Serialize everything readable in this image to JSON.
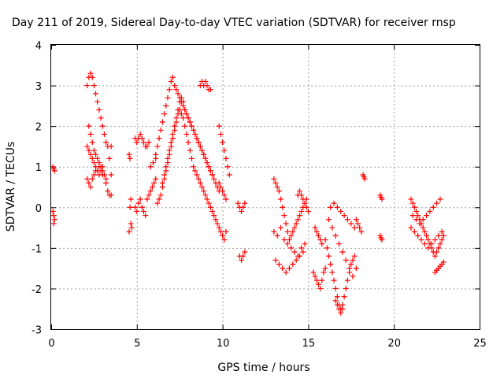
{
  "chart_data": {
    "type": "scatter",
    "title": "Day 211 of 2019, Sidereal Day-to-day VTEC variation (SDTVAR) for receiver rnsp",
    "xlabel": "GPS time / hours",
    "ylabel": "SDTVAR / TECUs",
    "xlim": [
      0,
      25
    ],
    "ylim": [
      -3,
      4
    ],
    "xticks": [
      "0",
      "5",
      "10",
      "15",
      "20",
      "25"
    ],
    "yticks": [
      "4",
      "3",
      "2",
      "1",
      "0",
      "-1",
      "-2",
      "-3"
    ],
    "grid": true,
    "marker": "+",
    "color": "#ff0000",
    "series": [
      {
        "name": "SDTVAR",
        "x": [
          0.1,
          0.15,
          0.2,
          0.1,
          0.15,
          0.2,
          0.15,
          2.1,
          2.2,
          2.3,
          2.4,
          2.5,
          2.6,
          2.7,
          2.8,
          2.9,
          3.0,
          3.1,
          3.2,
          3.3,
          2.2,
          2.3,
          2.4,
          2.5,
          2.6,
          2.7,
          2.8,
          2.9,
          3.0,
          3.1,
          3.2,
          2.1,
          2.2,
          2.3,
          2.4,
          2.5,
          2.6,
          2.7,
          2.8,
          2.9,
          3.0,
          2.1,
          2.2,
          2.3,
          2.4,
          2.5,
          2.6,
          2.8,
          3.0,
          3.2,
          3.3,
          3.4,
          3.5,
          3.5,
          3.4,
          3.5,
          4.55,
          4.6,
          4.65,
          4.7,
          4.55,
          4.6,
          4.65,
          4.9,
          5.0,
          5.1,
          5.2,
          5.3,
          5.4,
          5.5,
          5.6,
          5.7,
          4.9,
          5.0,
          5.1,
          5.2,
          5.3,
          5.4,
          5.5,
          5.6,
          5.7,
          5.8,
          5.9,
          6.0,
          6.1,
          5.8,
          5.95,
          6.1,
          6.1,
          6.2,
          6.3,
          6.4,
          6.5,
          6.6,
          6.7,
          6.8,
          6.9,
          7.0,
          7.1,
          7.2,
          7.3,
          7.4,
          7.5,
          7.6,
          7.7,
          7.8,
          7.9,
          8.0,
          8.1,
          8.2,
          8.3,
          8.4,
          8.5,
          8.6,
          8.7,
          8.8,
          8.9,
          9.0,
          9.1,
          9.2,
          9.3,
          9.4,
          6.5,
          6.6,
          6.7,
          6.8,
          6.9,
          7.0,
          7.1,
          7.2,
          7.3,
          7.4,
          7.5,
          7.6,
          7.7,
          7.8,
          7.9,
          8.0,
          8.1,
          8.2,
          8.3,
          8.4,
          8.5,
          8.6,
          8.7,
          8.8,
          8.9,
          9.0,
          9.1,
          9.2,
          9.3,
          9.4,
          9.5,
          9.6,
          9.7,
          9.8,
          6.2,
          6.3,
          6.4,
          6.5,
          6.6,
          6.7,
          6.8,
          6.9,
          7.0,
          7.1,
          7.2,
          7.3,
          7.4,
          7.5,
          7.6,
          7.7,
          7.8,
          7.9,
          8.0,
          8.1,
          8.2,
          8.3,
          8.4,
          8.5,
          8.6,
          8.7,
          8.8,
          8.9,
          9.0,
          9.1,
          9.2,
          9.3,
          9.4,
          9.5,
          9.6,
          9.7,
          9.8,
          9.9,
          10.0,
          10.1,
          10.2,
          8.7,
          8.8,
          8.9,
          9.0,
          9.1,
          9.2,
          9.3,
          9.8,
          9.9,
          10.0,
          10.1,
          10.2,
          10.3,
          10.4,
          9.8,
          9.9,
          10.0,
          10.1,
          10.2,
          10.9,
          11.0,
          11.1,
          11.2,
          11.3,
          11.0,
          11.1,
          11.2,
          11.3,
          13.0,
          13.1,
          13.2,
          13.3,
          13.4,
          13.5,
          13.6,
          13.7,
          13.8,
          13.9,
          14.0,
          14.1,
          14.2,
          14.3,
          14.4,
          14.5,
          14.6,
          14.7,
          14.8,
          14.9,
          13.0,
          13.2,
          13.4,
          13.6,
          13.8,
          14.0,
          14.2,
          14.4,
          14.6,
          14.8,
          13.1,
          13.3,
          13.5,
          13.7,
          13.9,
          14.1,
          14.3,
          14.5,
          14.7,
          14.4,
          14.5,
          14.6,
          14.7,
          14.8,
          14.9,
          15.0,
          15.3,
          15.4,
          15.5,
          15.6,
          15.7,
          15.8,
          15.9,
          16.0,
          15.4,
          15.5,
          15.6,
          15.7,
          15.8,
          16.0,
          16.1,
          16.2,
          16.3,
          16.4,
          16.5,
          16.6,
          16.7,
          16.8,
          16.9,
          17.0,
          17.1,
          17.2,
          17.3,
          17.4,
          17.5,
          17.6,
          17.7,
          17.8,
          16.2,
          16.4,
          16.6,
          16.8,
          17.0,
          17.2,
          17.4,
          17.6,
          16.3,
          16.5,
          16.7,
          16.9,
          17.1,
          17.3,
          17.5,
          17.7,
          16.6,
          16.7,
          16.8,
          16.9,
          17.0,
          18.2,
          18.25,
          18.3,
          17.8,
          17.9,
          18.0,
          18.1,
          19.2,
          19.25,
          19.3,
          19.2,
          19.25,
          19.3,
          21.0,
          21.1,
          21.2,
          21.3,
          21.4,
          21.5,
          21.6,
          21.7,
          21.8,
          21.9,
          22.0,
          22.1,
          22.2,
          22.3,
          22.4,
          22.5,
          22.6,
          22.7,
          22.8,
          22.9,
          21.0,
          21.2,
          21.4,
          21.6,
          21.8,
          22.0,
          22.2,
          22.4,
          22.6,
          22.8,
          21.1,
          21.3,
          21.5,
          21.7,
          21.9,
          22.1,
          22.3,
          22.5,
          22.7,
          22.4,
          22.5,
          22.6,
          22.7,
          22.8,
          22.9
        ],
        "y": [
          1.0,
          0.95,
          0.9,
          -0.1,
          -0.2,
          -0.3,
          -0.4,
          3.0,
          3.2,
          3.3,
          3.2,
          3.0,
          2.8,
          2.6,
          2.4,
          2.2,
          2.0,
          1.8,
          1.6,
          1.5,
          2.0,
          1.8,
          1.6,
          1.4,
          1.3,
          1.2,
          1.1,
          1.0,
          0.9,
          0.8,
          0.7,
          1.5,
          1.4,
          1.3,
          1.2,
          1.1,
          1.0,
          0.9,
          0.8,
          0.9,
          1.0,
          0.7,
          0.6,
          0.5,
          0.7,
          0.8,
          0.9,
          1.0,
          0.8,
          0.6,
          0.4,
          0.3,
          0.3,
          0.8,
          1.2,
          1.5,
          1.3,
          1.2,
          -0.4,
          -0.5,
          -0.6,
          0.0,
          0.2,
          1.7,
          1.6,
          1.7,
          1.8,
          1.7,
          1.6,
          1.5,
          1.5,
          1.6,
          0.0,
          -0.1,
          0.1,
          0.2,
          0.0,
          -0.1,
          -0.2,
          0.2,
          0.3,
          0.4,
          0.5,
          0.6,
          0.7,
          1.0,
          1.1,
          1.2,
          1.3,
          1.5,
          1.7,
          1.9,
          2.1,
          2.3,
          2.5,
          2.7,
          2.9,
          3.1,
          3.2,
          3.0,
          2.9,
          2.8,
          2.7,
          2.6,
          2.5,
          2.4,
          2.3,
          2.2,
          2.1,
          2.0,
          1.9,
          1.8,
          1.7,
          1.6,
          1.5,
          1.4,
          1.3,
          1.2,
          1.1,
          1.0,
          0.9,
          0.8,
          0.6,
          0.8,
          1.0,
          1.2,
          1.4,
          1.6,
          1.8,
          2.0,
          2.2,
          2.4,
          2.6,
          2.7,
          2.6,
          2.4,
          2.3,
          2.2,
          2.1,
          2.0,
          1.9,
          1.8,
          1.7,
          1.6,
          1.5,
          1.4,
          1.3,
          1.2,
          1.1,
          1.0,
          0.9,
          0.8,
          0.7,
          0.6,
          0.5,
          0.4,
          0.1,
          0.2,
          0.3,
          0.5,
          0.7,
          0.9,
          1.1,
          1.3,
          1.5,
          1.7,
          1.9,
          2.1,
          2.3,
          2.4,
          2.3,
          2.2,
          2.0,
          1.8,
          1.6,
          1.4,
          1.2,
          1.0,
          0.9,
          0.8,
          0.7,
          0.6,
          0.5,
          0.4,
          0.3,
          0.2,
          0.1,
          0.0,
          -0.1,
          -0.2,
          -0.3,
          -0.4,
          -0.5,
          -0.6,
          -0.7,
          -0.8,
          -0.6,
          3.0,
          3.1,
          3.0,
          3.1,
          3.0,
          2.9,
          2.9,
          2.0,
          1.8,
          1.6,
          1.4,
          1.2,
          1.0,
          0.8,
          0.6,
          0.5,
          0.4,
          0.3,
          0.2,
          0.1,
          0.0,
          -0.1,
          0.0,
          0.1,
          -1.2,
          -1.3,
          -1.2,
          -1.1,
          0.7,
          0.6,
          0.5,
          0.4,
          0.2,
          0.0,
          -0.2,
          -0.4,
          -0.6,
          -0.8,
          -0.7,
          -0.6,
          -0.5,
          -0.4,
          -0.3,
          -0.2,
          -0.1,
          0.0,
          0.1,
          0.2,
          -0.6,
          -0.7,
          -0.5,
          -0.8,
          -0.9,
          -1.0,
          -1.1,
          -1.2,
          -1.0,
          -0.9,
          -1.3,
          -1.4,
          -1.5,
          -1.6,
          -1.5,
          -1.4,
          -1.3,
          -1.2,
          -1.1,
          0.3,
          0.4,
          0.3,
          0.2,
          0.1,
          0.0,
          -0.1,
          -1.6,
          -1.7,
          -1.8,
          -1.9,
          -2.0,
          -1.8,
          -1.6,
          -1.5,
          -0.5,
          -0.6,
          -0.7,
          -0.8,
          -0.9,
          -0.8,
          -1.0,
          -1.2,
          -1.4,
          -1.6,
          -1.8,
          -2.0,
          -2.2,
          -2.4,
          -2.5,
          -2.4,
          -2.2,
          -2.0,
          -1.8,
          -1.6,
          -1.4,
          -1.3,
          -1.2,
          -1.5,
          -0.3,
          -0.5,
          -0.7,
          -0.9,
          -1.1,
          -1.3,
          -1.5,
          -1.7,
          0.0,
          0.1,
          0.0,
          -0.1,
          -0.2,
          -0.3,
          -0.4,
          -0.5,
          -2.3,
          -2.4,
          -2.5,
          -2.6,
          -2.5,
          0.8,
          0.75,
          0.7,
          -0.3,
          -0.4,
          -0.5,
          -0.6,
          0.3,
          0.25,
          0.2,
          -0.7,
          -0.75,
          -0.8,
          0.2,
          0.1,
          0.0,
          -0.1,
          -0.2,
          -0.3,
          -0.4,
          -0.5,
          -0.6,
          -0.7,
          -0.8,
          -0.9,
          -1.0,
          -1.1,
          -1.2,
          -1.1,
          -1.0,
          -0.9,
          -0.8,
          -0.7,
          -0.5,
          -0.6,
          -0.7,
          -0.8,
          -0.9,
          -1.0,
          -0.9,
          -0.8,
          -0.7,
          -0.6,
          -0.2,
          -0.3,
          -0.4,
          -0.3,
          -0.2,
          -0.1,
          0.0,
          0.1,
          0.2,
          -1.6,
          -1.55,
          -1.5,
          -1.45,
          -1.4,
          -1.35
        ]
      }
    ]
  }
}
